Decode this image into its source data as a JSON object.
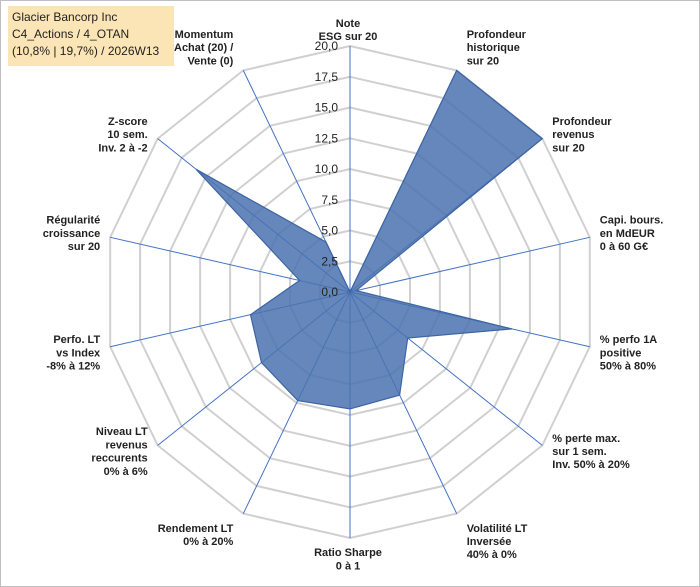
{
  "title_box": {
    "line1": "Glacier Bancorp Inc",
    "line2": "C4_Actions / 4_OTAN",
    "line3": "(10,8% | 19,7%) / 2026W13"
  },
  "chart_data": {
    "type": "radar",
    "title": "Glacier Bancorp Inc",
    "range": [
      0,
      20
    ],
    "ticks": [
      "0,0",
      "2,5",
      "5,0",
      "7,5",
      "10,0",
      "12,5",
      "15,0",
      "17,5",
      "20,0"
    ],
    "tick_values": [
      0,
      2.5,
      5,
      7.5,
      10,
      12.5,
      15,
      17.5,
      20
    ],
    "grid": true,
    "colors": {
      "fill": "#4a72b0",
      "stroke": "#3d64a3",
      "grid": "#d0d0d0",
      "spoke": "#4472c4"
    },
    "axes": [
      {
        "label": [
          "Note",
          "ESG sur 20"
        ],
        "value": 0
      },
      {
        "label": [
          "Profondeur",
          "historique",
          "sur 20"
        ],
        "value": 20
      },
      {
        "label": [
          "Profondeur",
          "revenus",
          "sur 20"
        ],
        "value": 20
      },
      {
        "label": [
          "Capi. bours.",
          "en MdEUR",
          "0 à 60 G€"
        ],
        "value": 0.5
      },
      {
        "label": [
          "% perfo 1A",
          "positive",
          "50% à 80%"
        ],
        "value": 13.5
      },
      {
        "label": [
          "% perte max.",
          "sur 1 sem.",
          "Inv. 50% à 20%"
        ],
        "value": 6
      },
      {
        "label": [
          "Volatilité LT",
          "Inversée",
          "40% à 0%"
        ],
        "value": 9.3
      },
      {
        "label": [
          "Ratio Sharpe",
          "0 à 1"
        ],
        "value": 9.5
      },
      {
        "label": [
          "Rendement LT",
          "0% à 20%"
        ],
        "value": 9.8
      },
      {
        "label": [
          "Niveau LT",
          "revenus",
          "reccurents",
          "0% à 6%"
        ],
        "value": 9.2
      },
      {
        "label": [
          "Perfo. LT",
          "vs Index",
          "-8% à 12%"
        ],
        "value": 8.3
      },
      {
        "label": [
          "Régularité",
          "croissance",
          "sur 20"
        ],
        "value": 4.2
      },
      {
        "label": [
          "Z-score",
          "10 sem.",
          "Inv. 2 à -2"
        ],
        "value": 16
      },
      {
        "label": [
          "Momentum",
          "Achat (20) /",
          "Vente (0)"
        ],
        "value": 4.5
      }
    ]
  }
}
